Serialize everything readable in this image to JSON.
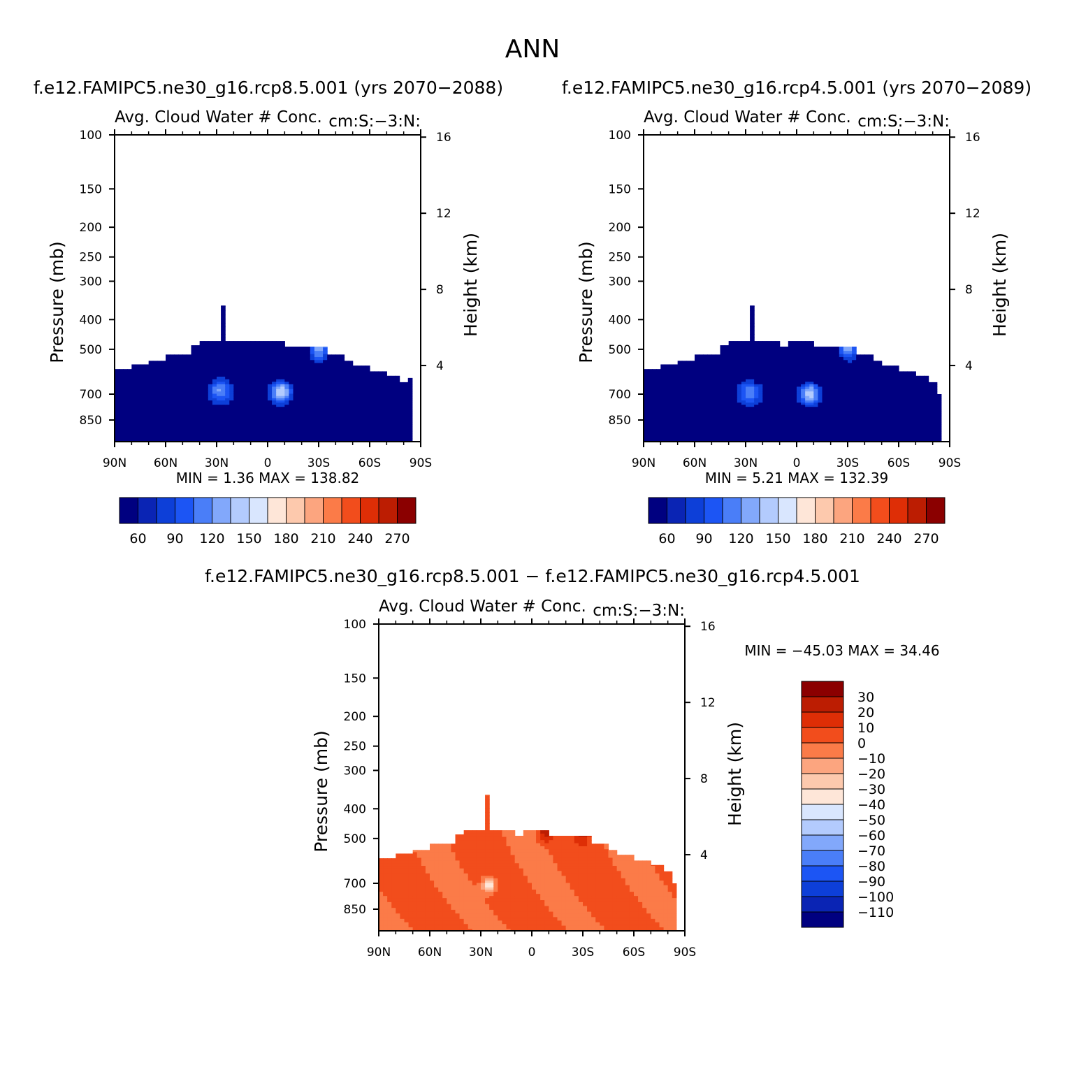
{
  "figure": {
    "title": "ANN",
    "diff_title": "f.e12.FAMIPC5.ne30_g16.rcp8.5.001 − f.e12.FAMIPC5.ne30_g16.rcp4.5.001"
  },
  "colors": {
    "seq": [
      "#000080",
      "#0a24b4",
      "#0d3fd8",
      "#1c55f4",
      "#4a7ef8",
      "#82a8fb",
      "#b3cbfd",
      "#d9e6fe",
      "#fee6d8",
      "#fdc9ad",
      "#fca57f",
      "#fb7b48",
      "#f24d1c",
      "#de2e06",
      "#bc1d02",
      "#8b0000"
    ],
    "diff": [
      "#000080",
      "#0a24b4",
      "#0d3fd8",
      "#1c55f4",
      "#4a7ef8",
      "#82a8fb",
      "#b3cbfd",
      "#d9e6fe",
      "#fee6d8",
      "#fdc9ad",
      "#fca57f",
      "#fb7b48",
      "#f24d1c",
      "#de2e06",
      "#bc1d02",
      "#8b0000"
    ]
  },
  "chart_data": [
    {
      "type": "heatmap",
      "title": "f.e12.FAMIPC5.ne30_g16.rcp8.5.001 (yrs 2070−2088)",
      "left_title": "Avg. Cloud Water # Conc.",
      "right_title": "cm:S:−3:N:",
      "xlabel": "",
      "ylabel": "Pressure (mb)",
      "y2label": "Height (km)",
      "xticks": [
        "90N",
        "60N",
        "30N",
        "0",
        "30S",
        "60S",
        "90S"
      ],
      "yticks": [
        100,
        150,
        200,
        250,
        300,
        400,
        500,
        700,
        850
      ],
      "y2ticks": [
        4,
        8,
        12,
        16
      ],
      "ylim": [
        100,
        1000
      ],
      "log_y": true,
      "stats": {
        "min_label": "MIN =",
        "min": "1.36",
        "max_label": "MAX =",
        "max": "138.82"
      },
      "colorbar": {
        "orientation": "horizontal",
        "labels": [
          "60",
          "90",
          "120",
          "150",
          "180",
          "210",
          "240",
          "270"
        ]
      },
      "data_mask_top_mb": [
        [
          90,
          580
        ],
        [
          80,
          560
        ],
        [
          70,
          545
        ],
        [
          60,
          520
        ],
        [
          50,
          520
        ],
        [
          45,
          485
        ],
        [
          40,
          470
        ],
        [
          28,
          470
        ],
        [
          27,
          360
        ],
        [
          26,
          470
        ],
        [
          10,
          470
        ],
        [
          5,
          470
        ],
        [
          -10,
          490
        ],
        [
          -30,
          490
        ],
        [
          -35,
          520
        ],
        [
          -45,
          545
        ],
        [
          -50,
          565
        ],
        [
          -60,
          590
        ],
        [
          -70,
          610
        ],
        [
          -78,
          640
        ],
        [
          -80,
          640
        ],
        [
          -82,
          620
        ],
        [
          -84,
          700
        ]
      ],
      "features": [
        {
          "lat": -8,
          "p": 690,
          "peak": 135
        },
        {
          "lat": -30,
          "p": 490,
          "peak": 130
        },
        {
          "lat": 28,
          "p": 680,
          "peak": 95
        }
      ]
    },
    {
      "type": "heatmap",
      "title": "f.e12.FAMIPC5.ne30_g16.rcp4.5.001 (yrs 2070−2089)",
      "left_title": "Avg. Cloud Water # Conc.",
      "right_title": "cm:S:−3:N:",
      "xlabel": "",
      "ylabel": "Pressure (mb)",
      "y2label": "Height (km)",
      "xticks": [
        "90N",
        "60N",
        "30N",
        "0",
        "30S",
        "60S",
        "90S"
      ],
      "yticks": [
        100,
        150,
        200,
        250,
        300,
        400,
        500,
        700,
        850
      ],
      "y2ticks": [
        4,
        8,
        12,
        16
      ],
      "ylim": [
        100,
        1000
      ],
      "log_y": true,
      "stats": {
        "min_label": "MIN =",
        "min": "5.21",
        "max_label": "MAX =",
        "max": "132.39"
      },
      "colorbar": {
        "orientation": "horizontal",
        "labels": [
          "60",
          "90",
          "120",
          "150",
          "180",
          "210",
          "240",
          "270"
        ]
      },
      "data_mask_top_mb": [
        [
          90,
          580
        ],
        [
          80,
          560
        ],
        [
          70,
          545
        ],
        [
          60,
          520
        ],
        [
          50,
          520
        ],
        [
          45,
          485
        ],
        [
          40,
          470
        ],
        [
          28,
          470
        ],
        [
          27,
          360
        ],
        [
          26,
          470
        ],
        [
          10,
          490
        ],
        [
          5,
          470
        ],
        [
          -10,
          490
        ],
        [
          -30,
          490
        ],
        [
          -35,
          520
        ],
        [
          -45,
          545
        ],
        [
          -50,
          565
        ],
        [
          -60,
          590
        ],
        [
          -70,
          610
        ],
        [
          -78,
          640
        ],
        [
          -80,
          640
        ],
        [
          -82,
          700
        ],
        [
          -84,
          700
        ]
      ],
      "features": [
        {
          "lat": -8,
          "p": 700,
          "peak": 128
        },
        {
          "lat": -30,
          "p": 490,
          "peak": 125
        },
        {
          "lat": 28,
          "p": 690,
          "peak": 90
        }
      ]
    },
    {
      "type": "heatmap",
      "title": "",
      "left_title": "Avg. Cloud Water # Conc.",
      "right_title": "cm:S:−3:N:",
      "xlabel": "",
      "ylabel": "Pressure (mb)",
      "y2label": "Height (km)",
      "xticks": [
        "90N",
        "60N",
        "30N",
        "0",
        "30S",
        "60S",
        "90S"
      ],
      "yticks": [
        100,
        150,
        200,
        250,
        300,
        400,
        500,
        700,
        850
      ],
      "y2ticks": [
        4,
        8,
        12,
        16
      ],
      "ylim": [
        100,
        1000
      ],
      "log_y": true,
      "stats": {
        "min_label": "MIN =",
        "min": "−45.03",
        "max_label": "MAX =",
        "max": "34.46"
      },
      "colorbar": {
        "orientation": "vertical",
        "labels": [
          "30",
          "20",
          "10",
          "0",
          "−10",
          "−20",
          "−30",
          "−40",
          "−50",
          "−60",
          "−70",
          "−80",
          "−90",
          "−100",
          "−110"
        ]
      },
      "data_mask_top_mb": [
        [
          90,
          580
        ],
        [
          80,
          560
        ],
        [
          70,
          545
        ],
        [
          60,
          520
        ],
        [
          50,
          520
        ],
        [
          45,
          485
        ],
        [
          40,
          470
        ],
        [
          28,
          470
        ],
        [
          27,
          360
        ],
        [
          26,
          470
        ],
        [
          10,
          490
        ],
        [
          5,
          470
        ],
        [
          -10,
          490
        ],
        [
          -30,
          490
        ],
        [
          -35,
          520
        ],
        [
          -45,
          545
        ],
        [
          -50,
          565
        ],
        [
          -60,
          590
        ],
        [
          -70,
          610
        ],
        [
          -78,
          640
        ],
        [
          -80,
          640
        ],
        [
          -82,
          700
        ],
        [
          -84,
          700
        ]
      ],
      "features": [
        {
          "lat": 25,
          "p": 710,
          "value": -40
        },
        {
          "lat": -8,
          "p": 470,
          "value": 30
        },
        {
          "lat": -30,
          "p": 470,
          "value": 25
        }
      ]
    }
  ]
}
